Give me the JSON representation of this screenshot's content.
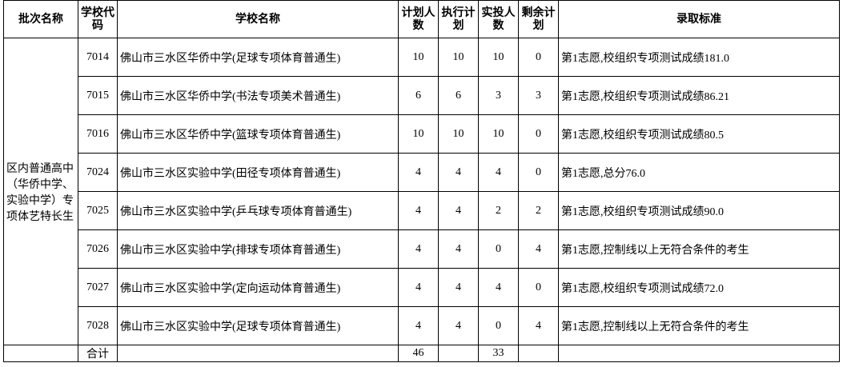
{
  "table": {
    "header": [
      "批次名称",
      "学校代码",
      "学校名称",
      "计划人数",
      "执行计划",
      "实投人数",
      "剩余计划",
      "录取标准"
    ],
    "group": "区内普通高中（华侨中学、实验中学）专项体艺特长生",
    "rows": [
      [
        "7014",
        "佛山市三水区华侨中学(足球专项体育普通生)",
        10,
        10,
        10,
        0,
        "第1志愿,校组织专项测试成绩181.0"
      ],
      [
        "7015",
        "佛山市三水区华侨中学(书法专项美术普通生)",
        6,
        6,
        3,
        3,
        "第1志愿,校组织专项测试成绩86.21"
      ],
      [
        "7016",
        "佛山市三水区华侨中学(篮球专项体育普通生)",
        10,
        10,
        10,
        0,
        "第1志愿,校组织专项测试成绩80.5"
      ],
      [
        "7024",
        "佛山市三水区实验中学(田径专项体育普通生)",
        4,
        4,
        4,
        0,
        "第1志愿,总分76.0"
      ],
      [
        "7025",
        "佛山市三水区实验中学(乒乓球专项体育普通生)",
        4,
        4,
        2,
        2,
        "第1志愿,校组织专项测试成绩90.0"
      ],
      [
        "7026",
        "佛山市三水区实验中学(排球专项体育普通生)",
        4,
        4,
        0,
        4,
        "第1志愿,控制线以上无符合条件的考生"
      ],
      [
        "7027",
        "佛山市三水区实验中学(定向运动体育普通生)",
        4,
        4,
        4,
        0,
        "第1志愿,校组织专项测试成绩72.0"
      ],
      [
        "7028",
        "佛山市三水区实验中学(足球专项体育普通生)",
        4,
        4,
        0,
        4,
        "第1志愿,控制线以上无符合条件的考生"
      ]
    ],
    "total": {
      "label": "合计",
      "plan": 46,
      "actual": 33
    }
  }
}
